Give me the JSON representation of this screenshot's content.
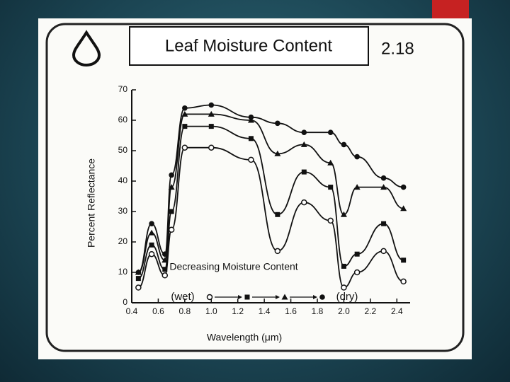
{
  "chart_data": {
    "type": "line",
    "title": "Leaf Moisture Content",
    "figure_number": "2.18",
    "x_label": "Wavelength (μm)",
    "y_label": "Percent Reflectance",
    "annotation": "Decreasing Moisture Content",
    "legend_start": "(wet)",
    "legend_end": "(dry)",
    "x": [
      0.45,
      0.55,
      0.65,
      0.7,
      0.8,
      1.0,
      1.3,
      1.5,
      1.7,
      1.9,
      2.0,
      2.1,
      2.3,
      2.45
    ],
    "series": [
      {
        "marker": "open-circle",
        "color": "#111111",
        "values": [
          5,
          16,
          9,
          24,
          51,
          51,
          47,
          17,
          33,
          27,
          5,
          10,
          17,
          7
        ]
      },
      {
        "marker": "square",
        "color": "#111111",
        "values": [
          8,
          19,
          11,
          30,
          58,
          58,
          54,
          29,
          43,
          38,
          12,
          16,
          26,
          14
        ]
      },
      {
        "marker": "triangle",
        "color": "#111111",
        "values": [
          10,
          23,
          14,
          38,
          62,
          62,
          60,
          49,
          52,
          46,
          29,
          38,
          38,
          31
        ]
      },
      {
        "marker": "circle",
        "color": "#111111",
        "values": [
          10,
          26,
          16,
          42,
          64,
          65,
          61,
          59,
          56,
          56,
          52,
          48,
          41,
          38
        ]
      }
    ],
    "xlim": [
      0.4,
      2.5
    ],
    "ylim": [
      0,
      70
    ],
    "xticks": [
      0.4,
      0.6,
      0.8,
      {
        "value": 1,
        "label": "1.0"
      },
      1.2,
      1.4,
      1.6,
      1.8,
      {
        "value": 2,
        "label": "2.0"
      },
      2.2,
      2.4
    ],
    "yticks": [
      0,
      10,
      20,
      30,
      40,
      50,
      60,
      70
    ]
  }
}
